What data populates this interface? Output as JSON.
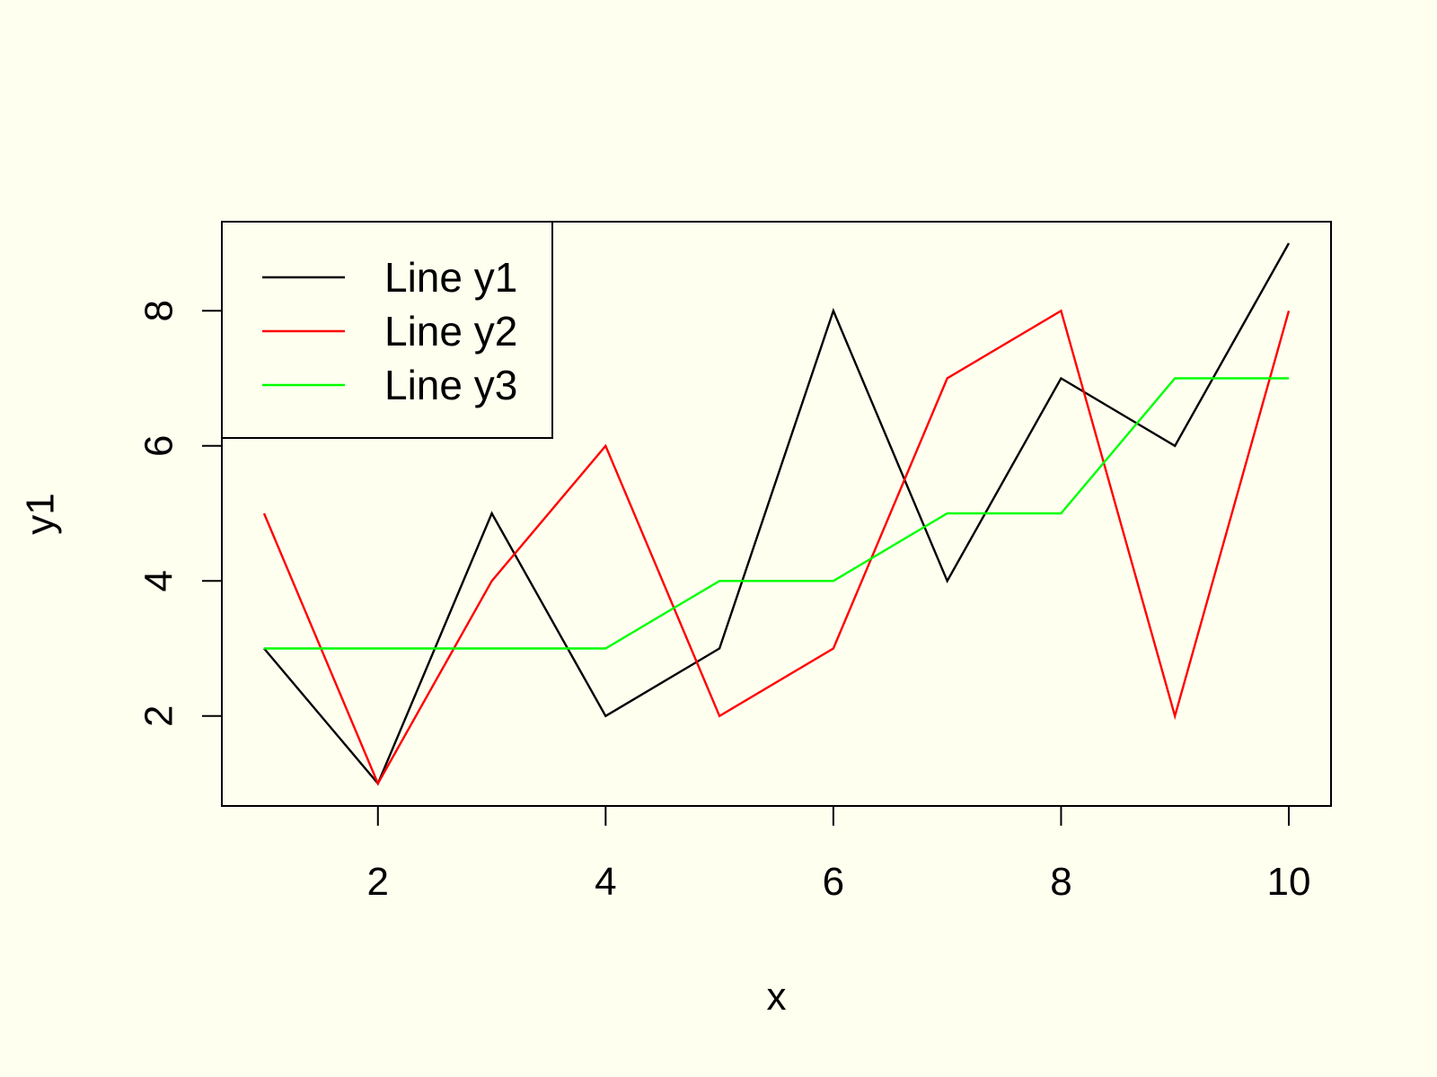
{
  "chart_data": {
    "type": "line",
    "title": "",
    "xlabel": "x",
    "ylabel": "y1",
    "x": [
      1,
      2,
      3,
      4,
      5,
      6,
      7,
      8,
      9,
      10
    ],
    "xlim": [
      1,
      10
    ],
    "ylim": [
      1,
      9
    ],
    "x_ticks": [
      2,
      4,
      6,
      8,
      10
    ],
    "y_ticks": [
      2,
      4,
      6,
      8
    ],
    "grid": false,
    "legend_position": "top-left",
    "background_color": "#fffff0",
    "series": [
      {
        "name": "Line y1",
        "color": "#000000",
        "values": [
          3,
          1,
          5,
          2,
          3,
          8,
          4,
          7,
          6,
          9
        ]
      },
      {
        "name": "Line y2",
        "color": "#ff0000",
        "values": [
          5,
          1,
          4,
          6,
          2,
          3,
          7,
          8,
          2,
          8
        ]
      },
      {
        "name": "Line y3",
        "color": "#00ff00",
        "values": [
          3,
          3,
          3,
          3,
          4,
          4,
          5,
          5,
          7,
          7
        ]
      }
    ]
  }
}
